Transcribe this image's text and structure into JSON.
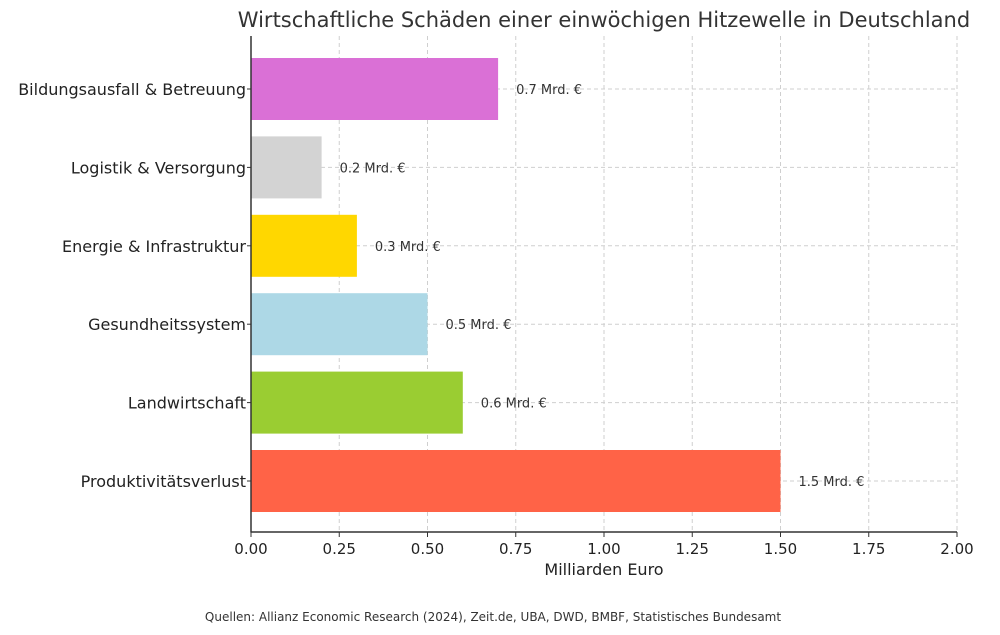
{
  "chart_data": {
    "type": "bar",
    "orientation": "horizontal",
    "title": "Wirtschaftliche Schäden einer einwöchigen Hitzewelle in Deutschland",
    "xlabel": "Milliarden Euro",
    "ylabel": "",
    "xlim": [
      0,
      2.0
    ],
    "xticks": [
      0,
      0.25,
      0.5,
      0.75,
      1.0,
      1.25,
      1.5,
      1.75,
      2.0
    ],
    "xtick_labels": [
      "0.00",
      "0.25",
      "0.50",
      "0.75",
      "1.00",
      "1.25",
      "1.50",
      "1.75",
      "2.00"
    ],
    "grid": true,
    "categories": [
      "Produktivitätsverlust",
      "Landwirtschaft",
      "Gesundheitssystem",
      "Energie & Infrastruktur",
      "Logistik & Versorgung",
      "Bildungsausfall & Betreuung"
    ],
    "values": [
      1.5,
      0.6,
      0.5,
      0.3,
      0.2,
      0.7
    ],
    "value_labels": [
      "1.5 Mrd. €",
      "0.6 Mrd. €",
      "0.5 Mrd. €",
      "0.3 Mrd. €",
      "0.2 Mrd. €",
      "0.7 Mrd. €"
    ],
    "colors": [
      "#ff6347",
      "#9acd32",
      "#add8e6",
      "#ffd700",
      "#d3d3d3",
      "#da70d6"
    ]
  },
  "source_note": "Quellen: Allianz Economic Research (2024), Zeit.de, UBA, DWD, BMBF, Statistisches Bundesamt"
}
